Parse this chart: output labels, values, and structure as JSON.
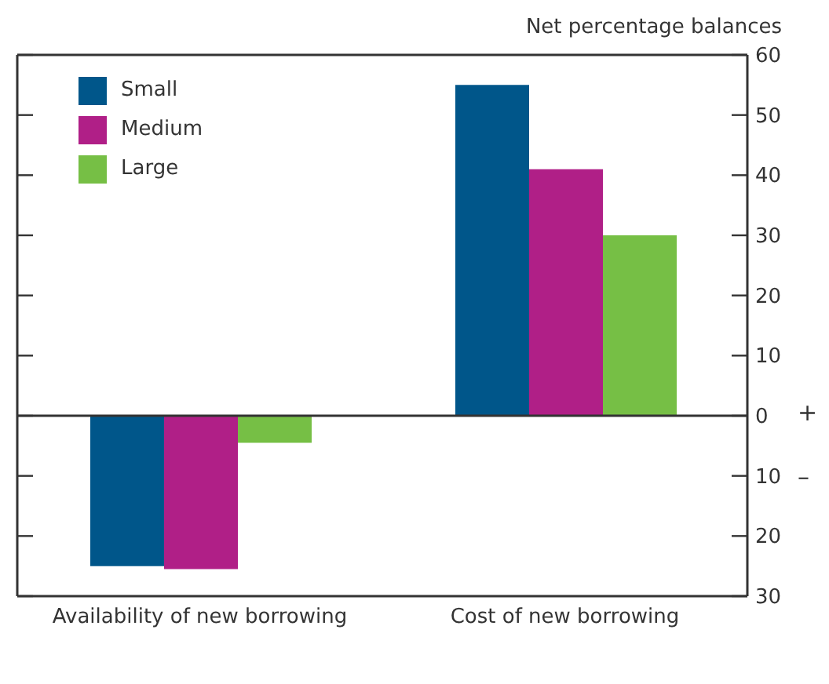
{
  "chart_data": {
    "type": "bar",
    "ylabel": "Net percentage balances",
    "categories": [
      "Availability of new borrowing",
      "Cost of new borrowing"
    ],
    "series": [
      {
        "name": "Small",
        "color": "#00568a",
        "values": [
          -25,
          55
        ]
      },
      {
        "name": "Medium",
        "color": "#b01f87",
        "values": [
          -25.5,
          41
        ]
      },
      {
        "name": "Large",
        "color": "#76bf45",
        "values": [
          -4.5,
          30
        ]
      }
    ],
    "ylim": [
      -30,
      60
    ],
    "yticks": [
      {
        "value": -30,
        "label": "30"
      },
      {
        "value": -20,
        "label": "20"
      },
      {
        "value": -10,
        "label": "10"
      },
      0,
      10,
      20,
      30,
      40,
      50,
      60
    ],
    "ref_lines": [
      {
        "axis": "y",
        "value": 0
      }
    ],
    "annotations": [
      "+",
      "–"
    ],
    "legend": "top left"
  }
}
